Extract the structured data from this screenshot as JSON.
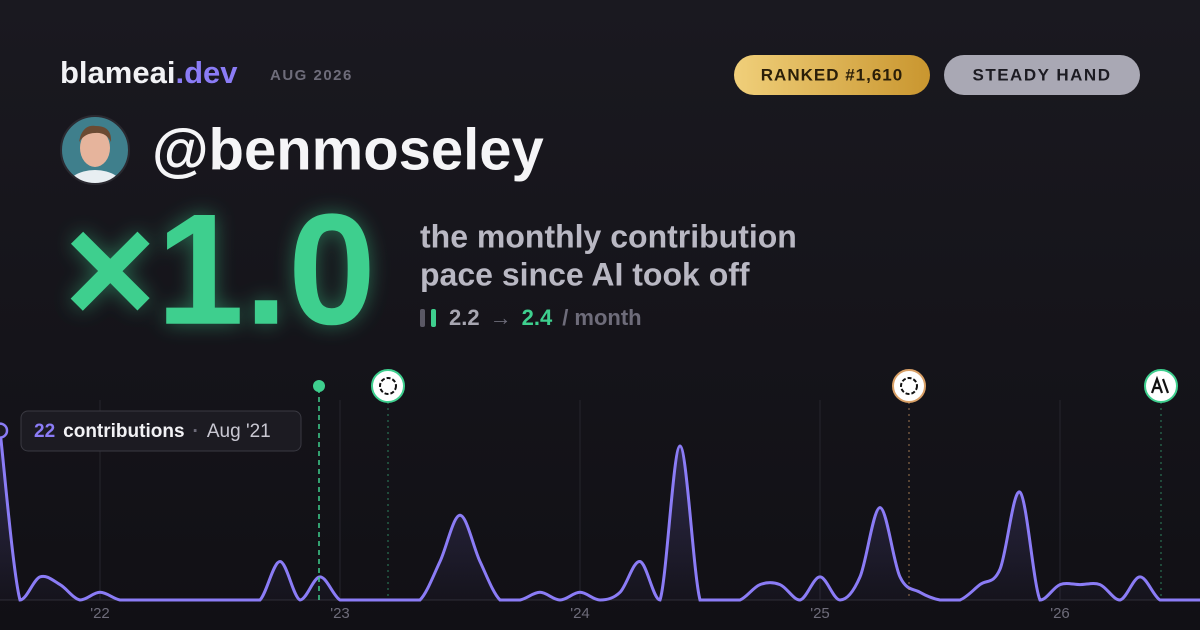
{
  "header": {
    "brand": "blameai",
    "brand_suffix": ".dev",
    "date": "AUG 2026",
    "badges": [
      "RANKED #1,610",
      "STEADY HAND"
    ]
  },
  "profile": {
    "handle": "@benmoseley"
  },
  "headline": {
    "multiplier": "×1.0",
    "description": [
      "the monthly contribution",
      "pace since AI took off"
    ],
    "before": 2.2,
    "arrow": "→",
    "after": 2.4,
    "unit": "/ month"
  },
  "chart": {
    "tooltip": {
      "value": 22,
      "label": "contributions",
      "separator": "·",
      "date": "Aug '21"
    },
    "values": [
      22,
      0,
      3,
      2,
      0,
      1,
      0,
      0,
      0,
      0,
      0,
      0,
      0,
      0,
      5,
      0,
      3,
      0,
      0,
      0,
      0,
      0,
      5,
      11,
      5,
      0,
      0,
      1,
      0,
      1,
      0,
      1,
      5,
      0,
      20,
      0,
      0,
      0,
      2,
      2,
      0,
      3,
      0,
      3,
      12,
      3,
      1,
      0,
      0,
      2,
      4,
      14,
      0,
      2,
      2,
      2,
      0,
      3,
      0,
      0,
      0
    ],
    "xticks": [
      {
        "value": 5,
        "label": "'22"
      },
      {
        "value": 17,
        "label": "'23"
      },
      {
        "value": 29,
        "label": "'24"
      },
      {
        "value": 41,
        "label": "'25"
      },
      {
        "value": 53,
        "label": "'26"
      }
    ]
  }
}
